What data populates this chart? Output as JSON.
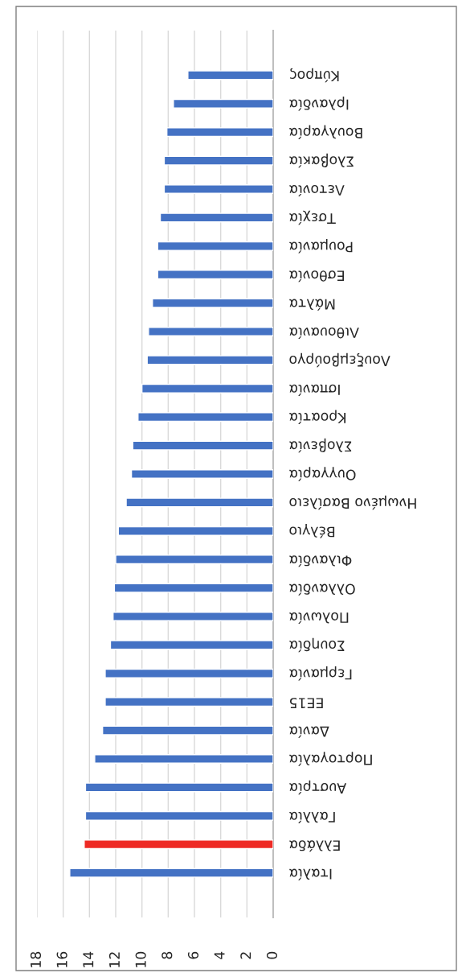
{
  "chart_data": {
    "type": "bar",
    "orientation": "horizontal",
    "categories": [
      "Κύπρος",
      "Ιρλανδία",
      "Βουλγαρία",
      "Σλοβακία",
      "Λετονία",
      "Τσεχία",
      "Ρουμανία",
      "Εσθονία",
      "Μάλτα",
      "Λιθουανία",
      "Λουξεμβούργο",
      "Ισπανία",
      "Κροατία",
      "Σλοβενία",
      "Ουγγαρία",
      "Ηνωμένο Βασίλειο",
      "Βέλγιο",
      "Φιλανδία",
      "Ολλανδία",
      "Πολωνία",
      "Σουηδία",
      "Γερμανία",
      "ΕΕ15",
      "Δανία",
      "Πορτογαλία",
      "Αυστρία",
      "Γαλλία",
      "Ελλάδα",
      "Ιταλία"
    ],
    "values": [
      6.5,
      7.6,
      8.1,
      8.3,
      8.3,
      8.6,
      8.8,
      8.8,
      9.2,
      9.5,
      9.6,
      10.0,
      10.3,
      10.7,
      10.8,
      11.2,
      11.8,
      12.0,
      12.1,
      12.2,
      12.4,
      12.8,
      12.8,
      13.0,
      13.6,
      14.3,
      14.3,
      14.4,
      15.5
    ],
    "colors": [
      "#4472c4",
      "#4472c4",
      "#4472c4",
      "#4472c4",
      "#4472c4",
      "#4472c4",
      "#4472c4",
      "#4472c4",
      "#4472c4",
      "#4472c4",
      "#4472c4",
      "#4472c4",
      "#4472c4",
      "#4472c4",
      "#4472c4",
      "#4472c4",
      "#4472c4",
      "#4472c4",
      "#4472c4",
      "#4472c4",
      "#4472c4",
      "#4472c4",
      "#4472c4",
      "#4472c4",
      "#4472c4",
      "#4472c4",
      "#4472c4",
      "#ee2a24",
      "#4472c4"
    ],
    "xlim": [
      18,
      0
    ],
    "xticks": [
      0,
      2,
      4,
      6,
      8,
      10,
      12,
      14,
      16,
      18
    ],
    "grid": "x"
  }
}
